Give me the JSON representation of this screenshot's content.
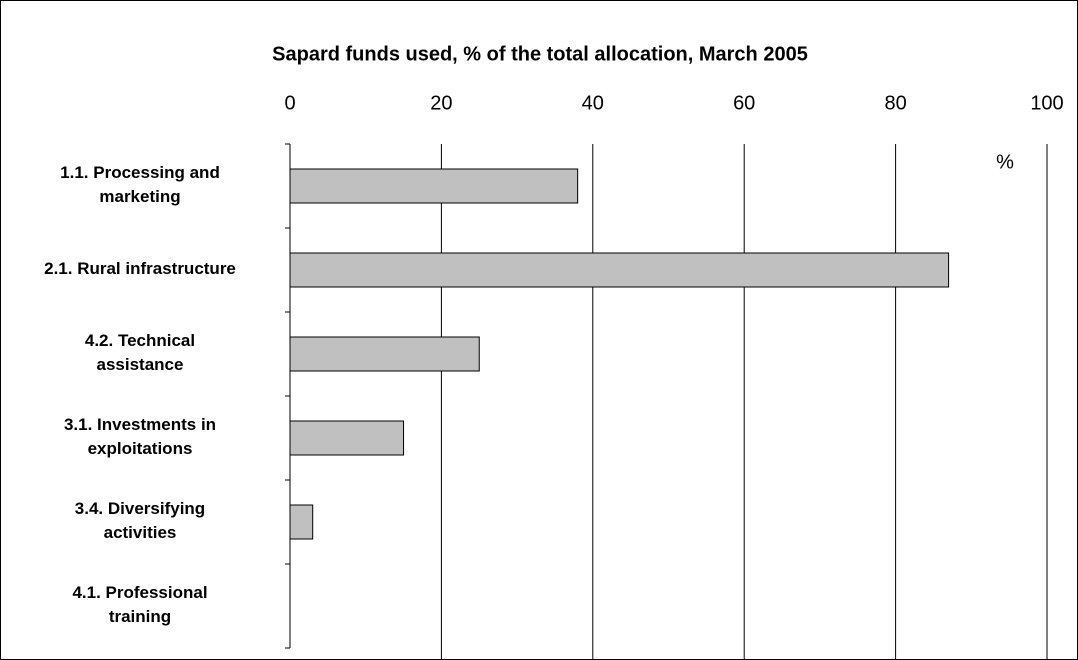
{
  "chart_data": {
    "type": "bar",
    "orientation": "horizontal",
    "title": "Sapard funds used, % of the total allocation, March 2005",
    "annotation": "%",
    "categories": [
      "1.1. Processing and\nmarketing",
      "2.1. Rural infrastructure",
      "4.2. Technical\nassistance",
      "3.1. Investments in\nexploitations",
      "3.4. Diversifying\nactivities",
      "4.1. Professional\ntraining"
    ],
    "values": [
      38,
      87,
      25,
      15,
      3,
      0
    ],
    "color": "#c0c0c0",
    "xlim": [
      0,
      100
    ],
    "xticks": [
      0,
      20,
      40,
      60,
      80,
      100
    ],
    "grid": true
  }
}
